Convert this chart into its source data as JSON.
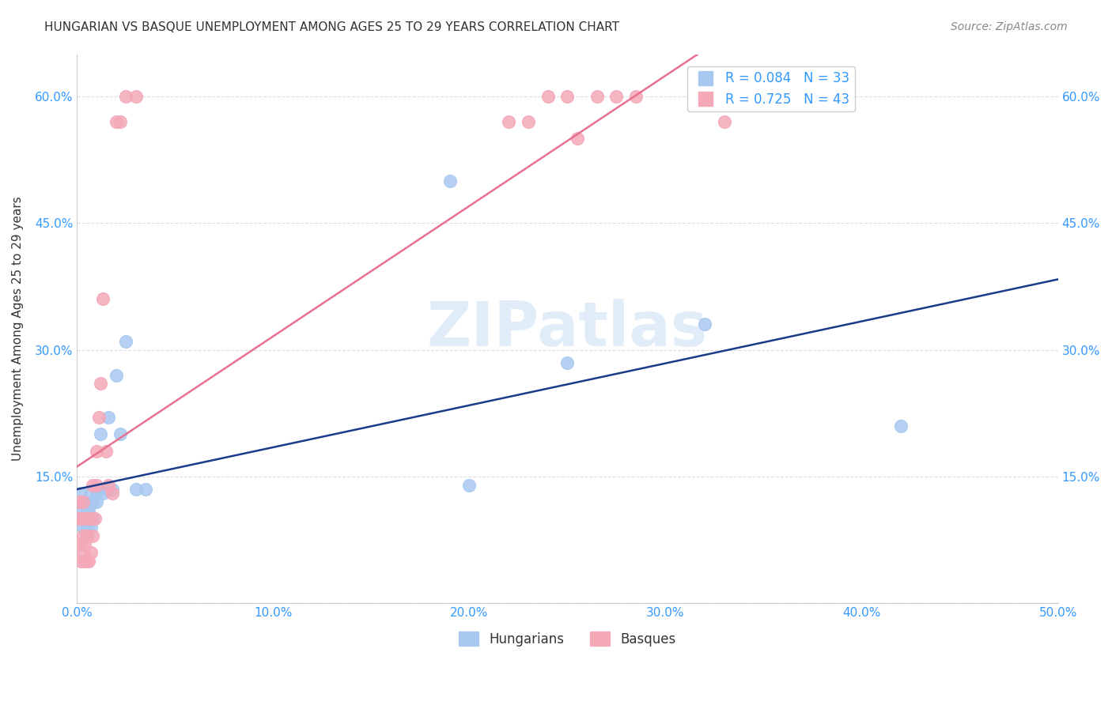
{
  "title": "HUNGARIAN VS BASQUE UNEMPLOYMENT AMONG AGES 25 TO 29 YEARS CORRELATION CHART",
  "source": "Source: ZipAtlas.com",
  "ylabel": "Unemployment Among Ages 25 to 29 years",
  "xlim": [
    0.0,
    0.5
  ],
  "ylim": [
    0.0,
    0.65
  ],
  "xticks": [
    0.0,
    0.1,
    0.2,
    0.3,
    0.4,
    0.5
  ],
  "yticks": [
    0.0,
    0.15,
    0.3,
    0.45,
    0.6
  ],
  "xticklabels": [
    "0.0%",
    "10.0%",
    "20.0%",
    "30.0%",
    "40.0%",
    "50.0%"
  ],
  "yticklabels": [
    "",
    "15.0%",
    "30.0%",
    "45.0%",
    "60.0%"
  ],
  "hungarian_color": "#a8c8f0",
  "basque_color": "#f4a8b8",
  "hungarian_line_color": "#1a3a8a",
  "basque_line_color": "#e87090",
  "tick_color": "#3399ff",
  "hungarian_R": 0.084,
  "hungarian_N": 33,
  "basque_R": 0.725,
  "basque_N": 43,
  "watermark": "ZIPatlas",
  "hungarian_x": [
    0.001,
    0.002,
    0.002,
    0.003,
    0.003,
    0.004,
    0.004,
    0.005,
    0.005,
    0.005,
    0.006,
    0.006,
    0.007,
    0.007,
    0.008,
    0.008,
    0.01,
    0.01,
    0.012,
    0.013,
    0.015,
    0.016,
    0.018,
    0.02,
    0.022,
    0.025,
    0.03,
    0.035,
    0.19,
    0.2,
    0.25,
    0.32,
    0.42
  ],
  "hungarian_y": [
    0.12,
    0.1,
    0.13,
    0.09,
    0.11,
    0.1,
    0.12,
    0.08,
    0.09,
    0.11,
    0.1,
    0.11,
    0.09,
    0.13,
    0.1,
    0.12,
    0.12,
    0.13,
    0.2,
    0.13,
    0.135,
    0.22,
    0.135,
    0.27,
    0.2,
    0.31,
    0.135,
    0.135,
    0.5,
    0.14,
    0.285,
    0.33,
    0.21
  ],
  "basque_x": [
    0.001,
    0.001,
    0.002,
    0.002,
    0.002,
    0.003,
    0.003,
    0.003,
    0.004,
    0.004,
    0.004,
    0.005,
    0.005,
    0.006,
    0.006,
    0.007,
    0.007,
    0.008,
    0.008,
    0.009,
    0.01,
    0.01,
    0.011,
    0.012,
    0.013,
    0.015,
    0.016,
    0.018,
    0.02,
    0.022,
    0.025,
    0.03,
    0.22,
    0.23,
    0.24,
    0.25,
    0.255,
    0.265,
    0.275,
    0.285,
    0.33,
    0.34,
    0.35
  ],
  "basque_y": [
    0.1,
    0.12,
    0.05,
    0.07,
    0.1,
    0.06,
    0.08,
    0.12,
    0.05,
    0.07,
    0.1,
    0.05,
    0.08,
    0.05,
    0.1,
    0.06,
    0.1,
    0.08,
    0.14,
    0.1,
    0.14,
    0.18,
    0.22,
    0.26,
    0.36,
    0.18,
    0.14,
    0.13,
    0.57,
    0.57,
    0.6,
    0.6,
    0.57,
    0.57,
    0.6,
    0.6,
    0.55,
    0.6,
    0.6,
    0.6,
    0.57,
    0.6,
    0.6
  ],
  "legend_top_labels": [
    "R = 0.084   N = 33",
    "R = 0.725   N = 43"
  ],
  "legend_bottom_labels": [
    "Hungarians",
    "Basques"
  ]
}
